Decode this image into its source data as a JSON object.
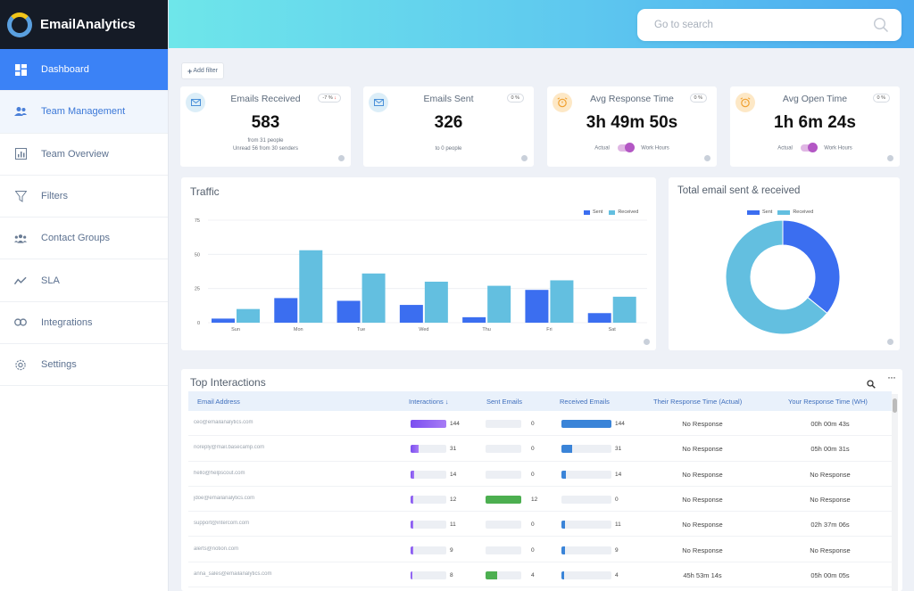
{
  "app": {
    "name": "EmailAnalytics"
  },
  "sidebar": {
    "items": [
      {
        "label": "Dashboard",
        "icon": "dashboard-icon"
      },
      {
        "label": "Team Management",
        "icon": "team-icon"
      },
      {
        "label": "Team Overview",
        "icon": "overview-icon"
      },
      {
        "label": "Filters",
        "icon": "filter-icon"
      },
      {
        "label": "Contact Groups",
        "icon": "contact-groups-icon"
      },
      {
        "label": "SLA",
        "icon": "sla-icon"
      },
      {
        "label": "Integrations",
        "icon": "integrations-icon"
      },
      {
        "label": "Settings",
        "icon": "settings-icon"
      }
    ]
  },
  "search": {
    "placeholder": "Go to search"
  },
  "toolbar": {
    "add_filter": "Add filter"
  },
  "kpis": {
    "received": {
      "title": "Emails Received",
      "value": "583",
      "badge": "-7 %",
      "sub1": "from 31 people",
      "sub2": "Unread  56 from 30 senders"
    },
    "sent": {
      "title": "Emails Sent",
      "value": "326",
      "badge": "0 %",
      "sub1": "to 0 people"
    },
    "response": {
      "title": "Avg Response Time",
      "value": "3h 49m 50s",
      "badge": "0 %",
      "left": "Actual",
      "right": "Work Hours"
    },
    "open": {
      "title": "Avg Open Time",
      "value": "1h 6m 24s",
      "badge": "0 %",
      "left": "Actual",
      "right": "Work Hours"
    }
  },
  "colors": {
    "sent": "#3b6ef0",
    "received": "#63bfe0",
    "interactions": "#8a5cf0",
    "sent_bar": "#4caf50",
    "received_bar": "#3a84d8"
  },
  "chart_data": [
    {
      "type": "bar",
      "title": "Traffic",
      "categories": [
        "Sun",
        "Mon",
        "Tue",
        "Wed",
        "Thu",
        "Fri",
        "Sat"
      ],
      "series": [
        {
          "name": "Sent",
          "values": [
            3,
            18,
            16,
            13,
            4,
            24,
            7
          ]
        },
        {
          "name": "Received",
          "values": [
            10,
            53,
            36,
            30,
            27,
            31,
            19
          ]
        }
      ],
      "yticks": [
        0,
        25,
        50,
        75
      ],
      "ylim": [
        0,
        75
      ],
      "legend": "top-right"
    },
    {
      "type": "pie",
      "title": "Total email sent & received",
      "labels": [
        "Sent",
        "Received"
      ],
      "values": [
        326,
        583
      ],
      "legend": "top"
    }
  ],
  "interactions": {
    "title": "Top Interactions",
    "columns": [
      "Email Address",
      "Interactions",
      "Sent Emails",
      "Received Emails",
      "Their Response Time (Actual)",
      "Your Response Time (WH)"
    ],
    "rows": [
      {
        "email": "ceo@emailanalytics.com",
        "interactions": 144,
        "sent": 0,
        "received": 144,
        "their": "No Response",
        "your": "00h 00m 43s"
      },
      {
        "email": "noreply@mail.basecamp.com",
        "interactions": 31,
        "sent": 0,
        "received": 31,
        "their": "No Response",
        "your": "05h 00m 31s"
      },
      {
        "email": "hello@helpscout.com",
        "interactions": 14,
        "sent": 0,
        "received": 14,
        "their": "No Response",
        "your": "No Response"
      },
      {
        "email": "jdoe@emailanalytics.com",
        "interactions": 12,
        "sent": 12,
        "received": 0,
        "their": "No Response",
        "your": "No Response"
      },
      {
        "email": "support@intercom.com",
        "interactions": 11,
        "sent": 0,
        "received": 11,
        "their": "No Response",
        "your": "02h 37m 06s"
      },
      {
        "email": "alerts@notion.com",
        "interactions": 9,
        "sent": 0,
        "received": 9,
        "their": "No Response",
        "your": "No Response"
      },
      {
        "email": "anna_sales@emailanalytics.com",
        "interactions": 8,
        "sent": 4,
        "received": 4,
        "their": "45h 53m 14s",
        "your": "05h 00m 05s"
      }
    ]
  }
}
